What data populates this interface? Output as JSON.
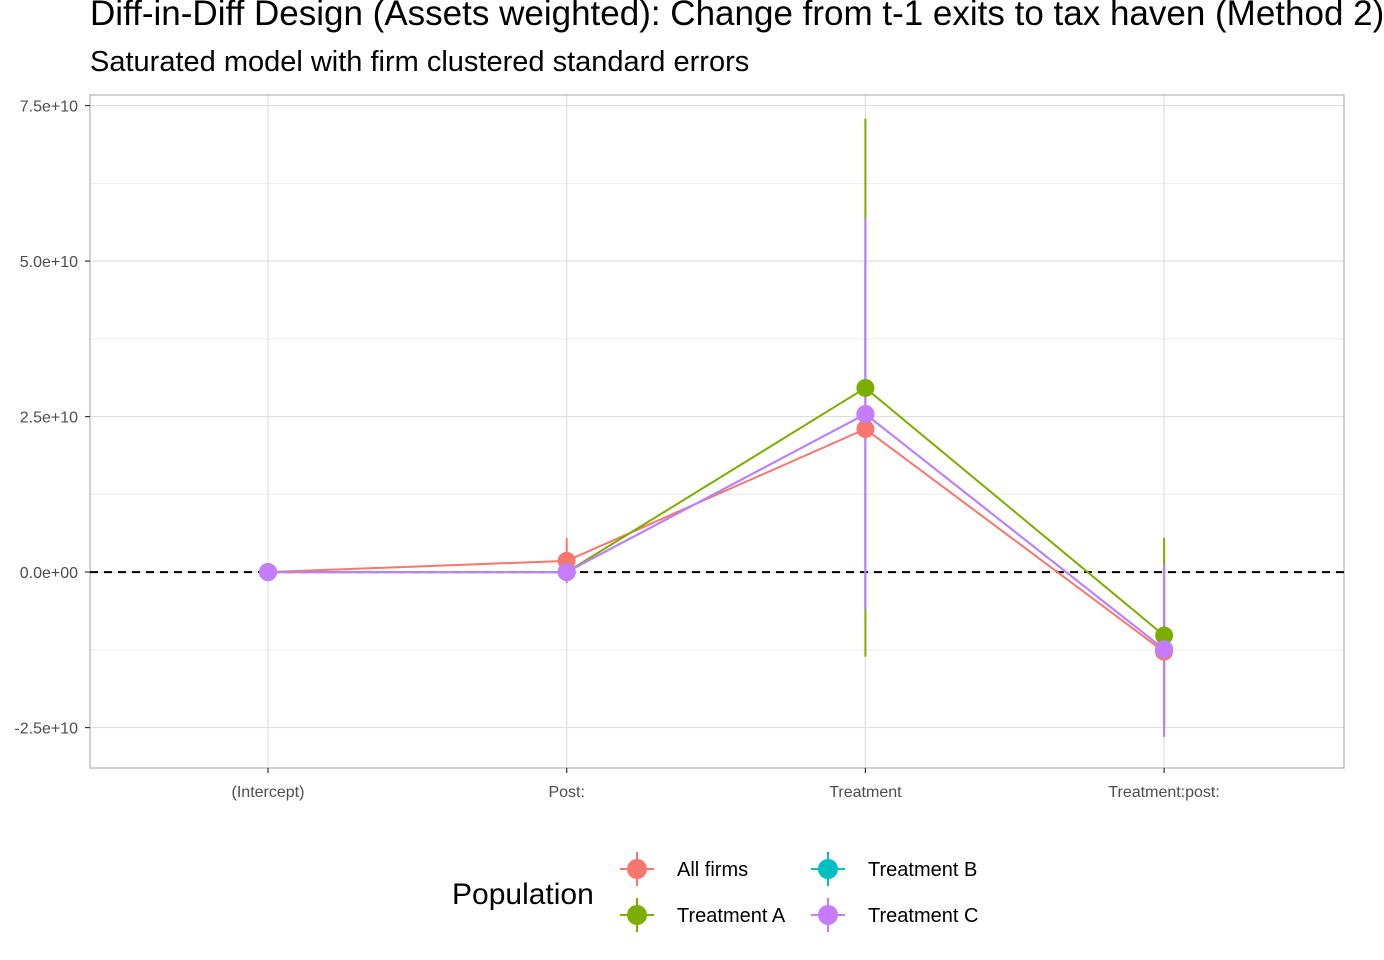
{
  "chart_data": {
    "type": "scatter",
    "title": "Diff-in-Diff Design (Assets weighted): Change from t-1 exits to tax haven (Method 2)",
    "subtitle": "Saturated model with firm clustered standard errors",
    "xlabel": "",
    "ylabel": "",
    "categories": [
      "(Intercept)",
      "Post:",
      "Treatment",
      "Treatment:post:"
    ],
    "y_ticks": [
      -25000000000,
      0,
      25000000000,
      50000000000,
      75000000000
    ],
    "y_tick_labels": [
      "-2.5e+10",
      "0.0e+00",
      "2.5e+10",
      "5.0e+10",
      "7.5e+10"
    ],
    "ylim": [
      -31500000000,
      76700000000
    ],
    "grid": true,
    "reference_line": {
      "y": 0,
      "style": "dashed"
    },
    "legend": {
      "title": "Population",
      "position": "bottom"
    },
    "series": [
      {
        "name": "All firms",
        "color": "#F8766D",
        "values": [
          0,
          1800000000,
          23000000000,
          -12800000000
        ],
        "lower": [
          0,
          -1800000000,
          -6000000000,
          -25000000000
        ],
        "upper": [
          0,
          5500000000,
          50000000000,
          -1000000000
        ]
      },
      {
        "name": "Treatment A",
        "color": "#7CAE00",
        "values": [
          0,
          0,
          29600000000,
          -10200000000
        ],
        "lower": [
          0,
          0,
          -13600000000,
          -25000000000
        ],
        "upper": [
          0,
          0,
          72900000000,
          5500000000
        ]
      },
      {
        "name": "Treatment B",
        "color": "#00BFC4",
        "values": [
          0,
          0,
          25400000000,
          -12400000000
        ],
        "lower": [
          0,
          0,
          -6000000000,
          -26500000000
        ],
        "upper": [
          0,
          0,
          56800000000,
          1300000000
        ]
      },
      {
        "name": "Treatment C",
        "color": "#C77CFF",
        "values": [
          0,
          0,
          25400000000,
          -12400000000
        ],
        "lower": [
          0,
          0,
          -6000000000,
          -26500000000
        ],
        "upper": [
          0,
          0,
          56800000000,
          1300000000
        ]
      }
    ]
  }
}
